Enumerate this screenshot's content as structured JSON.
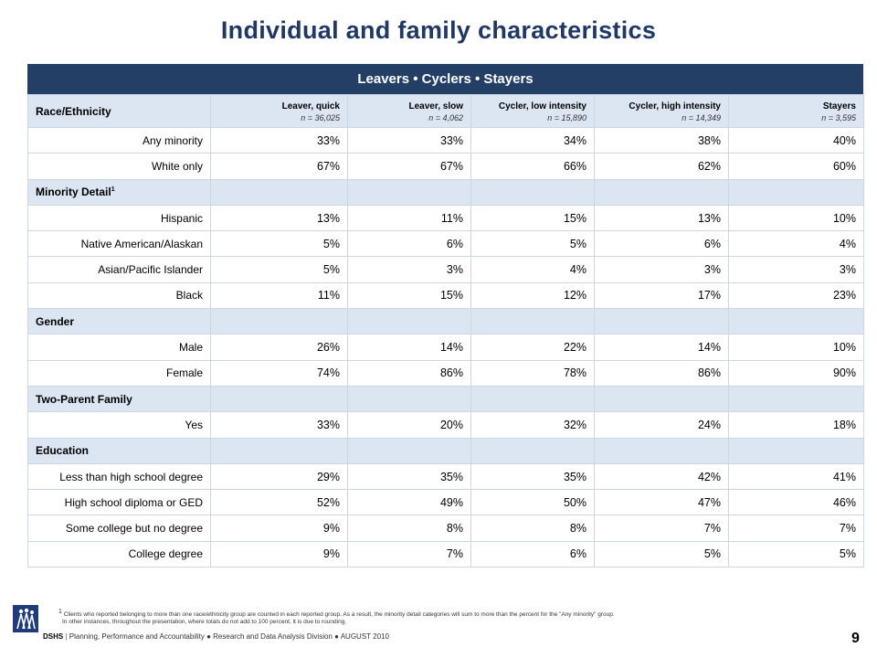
{
  "title": "Individual and family characteristics",
  "banner": "Leavers • Cyclers • Stayers",
  "table": {
    "first_header": "Race/Ethnicity",
    "columns": [
      {
        "label": "Leaver, quick",
        "n": "n = 36,025"
      },
      {
        "label": "Leaver, slow",
        "n": "n = 4,062"
      },
      {
        "label": "Cycler, low intensity",
        "n": "n = 15,890"
      },
      {
        "label": "Cycler, high intensity",
        "n": "n = 14,349"
      },
      {
        "label": "Stayers",
        "n": "n = 3,595"
      }
    ],
    "rows": [
      {
        "type": "data",
        "label": "Any minority",
        "values": [
          "33%",
          "33%",
          "34%",
          "38%",
          "40%"
        ]
      },
      {
        "type": "data",
        "label": "White only",
        "values": [
          "67%",
          "67%",
          "66%",
          "62%",
          "60%"
        ]
      },
      {
        "type": "section",
        "label": "Minority Detail",
        "sup": "1"
      },
      {
        "type": "data",
        "label": "Hispanic",
        "values": [
          "13%",
          "11%",
          "15%",
          "13%",
          "10%"
        ]
      },
      {
        "type": "data",
        "label": "Native American/Alaskan",
        "values": [
          "5%",
          "6%",
          "5%",
          "6%",
          "4%"
        ]
      },
      {
        "type": "data",
        "label": "Asian/Pacific Islander",
        "values": [
          "5%",
          "3%",
          "4%",
          "3%",
          "3%"
        ]
      },
      {
        "type": "data",
        "label": "Black",
        "values": [
          "11%",
          "15%",
          "12%",
          "17%",
          "23%"
        ]
      },
      {
        "type": "section",
        "label": "Gender"
      },
      {
        "type": "data",
        "label": "Male",
        "values": [
          "26%",
          "14%",
          "22%",
          "14%",
          "10%"
        ]
      },
      {
        "type": "data",
        "label": "Female",
        "values": [
          "74%",
          "86%",
          "78%",
          "86%",
          "90%"
        ]
      },
      {
        "type": "section",
        "label": "Two-Parent Family"
      },
      {
        "type": "data",
        "label": "Yes",
        "values": [
          "33%",
          "20%",
          "32%",
          "24%",
          "18%"
        ]
      },
      {
        "type": "section",
        "label": "Education"
      },
      {
        "type": "data",
        "label": "Less than high school degree",
        "values": [
          "29%",
          "35%",
          "35%",
          "42%",
          "41%"
        ]
      },
      {
        "type": "data",
        "label": "High school diploma or GED",
        "values": [
          "52%",
          "49%",
          "50%",
          "47%",
          "46%"
        ]
      },
      {
        "type": "data",
        "label": "Some college but no degree",
        "values": [
          "9%",
          "8%",
          "8%",
          "7%",
          "7%"
        ]
      },
      {
        "type": "data",
        "label": "College degree",
        "values": [
          "9%",
          "7%",
          "6%",
          "5%",
          "5%"
        ]
      }
    ]
  },
  "footnote": {
    "sup": "1",
    "line1": "Clients who reported belonging to more than one race/ethnicity group are counted in each reported group. As a result, the minority detail categories will sum to more than the percent for the \"Any minority\" group.",
    "line2": "In other instances, throughout the presentation, where totals do not add to 100 percent, it is due to rounding."
  },
  "footer": {
    "org": "DSHS",
    "text": "Planning, Performance and Accountability ● Research and Data Analysis Division ● AUGUST 2010"
  },
  "page_number": "9",
  "colors": {
    "title": "#1f3864",
    "banner": "#243f66",
    "header_fill": "#dce5f2",
    "logo": "#1f3b7a"
  },
  "logo_icon": "dshs-family-logo"
}
